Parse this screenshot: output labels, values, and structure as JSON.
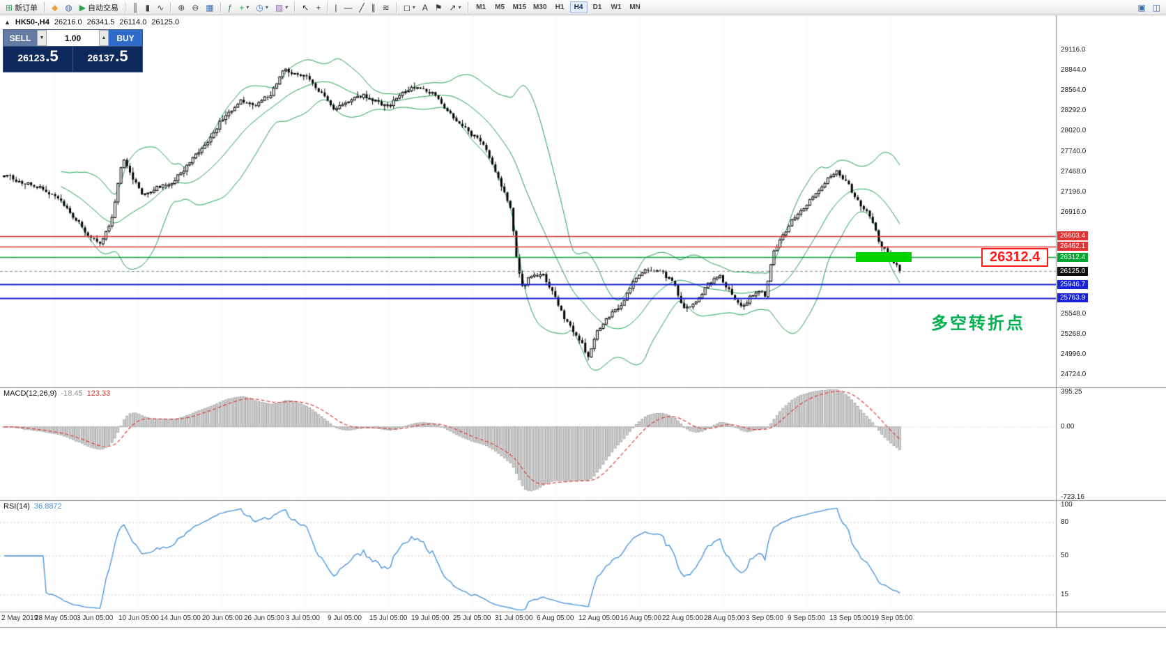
{
  "toolbar": {
    "caret_glyph": "▾",
    "groups": [
      {
        "items": [
          {
            "name": "new-order-button",
            "glyph": "⊞",
            "color": "#2e9e4f",
            "label": "新订单"
          }
        ]
      },
      {
        "items": [
          {
            "name": "metaeditor-button",
            "glyph": "◆",
            "color": "#e8a33d"
          },
          {
            "name": "market-watch-button",
            "glyph": "◍",
            "color": "#3b6fb5"
          },
          {
            "name": "autotrading-button",
            "glyph": "▶",
            "color": "#2e9e4f",
            "label": "自动交易"
          }
        ]
      },
      {
        "items": [
          {
            "name": "bar-chart-button",
            "glyph": "║",
            "color": "#444444"
          },
          {
            "name": "candlestick-chart-button",
            "glyph": "▮",
            "color": "#444444"
          },
          {
            "name": "line-chart-button",
            "glyph": "∿",
            "color": "#444444"
          }
        ]
      },
      {
        "items": [
          {
            "name": "zoom-in-button",
            "glyph": "⊕",
            "color": "#444444"
          },
          {
            "name": "zoom-out-button",
            "glyph": "⊖",
            "color": "#444444"
          },
          {
            "name": "grid-button",
            "glyph": "▦",
            "color": "#3b6fb5"
          }
        ]
      },
      {
        "items": [
          {
            "name": "indicators-button",
            "glyph": "ƒ",
            "color": "#2e8b57"
          },
          {
            "name": "add-indicator-button",
            "glyph": "+",
            "color": "#2e9e4f",
            "caret": true
          },
          {
            "name": "periods-button",
            "glyph": "◷",
            "color": "#3b6fb5",
            "caret": true
          },
          {
            "name": "templates-button",
            "glyph": "▨",
            "color": "#8a6fb5",
            "caret": true
          }
        ]
      },
      {
        "items": [
          {
            "name": "cursor-button",
            "glyph": "↖",
            "color": "#333333"
          },
          {
            "name": "crosshair-button",
            "glyph": "+",
            "color": "#333333"
          }
        ]
      },
      {
        "items": [
          {
            "name": "vertical-line-button",
            "glyph": "|",
            "color": "#333333"
          },
          {
            "name": "horizontal-line-button",
            "glyph": "—",
            "color": "#333333"
          },
          {
            "name": "trendline-button",
            "glyph": "╱",
            "color": "#333333"
          },
          {
            "name": "equidistant-channel-button",
            "glyph": "∥",
            "color": "#333333"
          },
          {
            "name": "fibonacci-button",
            "glyph": "≋",
            "color": "#333333"
          }
        ]
      },
      {
        "items": [
          {
            "name": "shapes-button",
            "glyph": "◻",
            "color": "#333333",
            "caret": true
          },
          {
            "name": "text-button",
            "glyph": "A",
            "color": "#333333"
          },
          {
            "name": "text-label-button",
            "glyph": "⚑",
            "color": "#333333"
          },
          {
            "name": "arrows-button",
            "glyph": "↗",
            "color": "#333333",
            "caret": true
          }
        ]
      }
    ],
    "right_items": [
      {
        "name": "new-chart-window-button",
        "glyph": "▣",
        "color": "#3b6fb5"
      },
      {
        "name": "window-layout-button",
        "glyph": "◫",
        "color": "#3b6fb5"
      }
    ]
  },
  "timeframes": {
    "items": [
      "M1",
      "M5",
      "M15",
      "M30",
      "H1",
      "H4",
      "D1",
      "W1",
      "MN"
    ],
    "active": "H4"
  },
  "chart_header": {
    "collapse_arrow": "▲",
    "symbol_period": "HK50-,H4",
    "open": "26216.0",
    "high": "26341.5",
    "low": "26114.0",
    "close": "26125.0"
  },
  "trade_panel": {
    "sell_label": "SELL",
    "buy_label": "BUY",
    "volume": "1.00",
    "volume_down_icon": "▼",
    "volume_up_icon": "▲",
    "sell_price_main": "26123",
    "sell_price_pips": ".5",
    "buy_price_main": "26137",
    "buy_price_pips": ".5"
  },
  "annotations": {
    "turning_point_text": "多空转折点",
    "turning_point_color": "#00b050",
    "price_label_text": "26312.4",
    "price_label_color": "#ff1a1a",
    "highlight_color": "#00d300"
  },
  "price_axis": {
    "labels": [
      {
        "text": "29116.0",
        "price": 29116.0
      },
      {
        "text": "28844.0",
        "price": 28844.0
      },
      {
        "text": "28564.0",
        "price": 28564.0
      },
      {
        "text": "28292.0",
        "price": 28292.0
      },
      {
        "text": "28020.0",
        "price": 28020.0
      },
      {
        "text": "27740.0",
        "price": 27740.0
      },
      {
        "text": "27468.0",
        "price": 27468.0
      },
      {
        "text": "27196.0",
        "price": 27196.0
      },
      {
        "text": "26916.0",
        "price": 26916.0
      },
      {
        "text": "25548.0",
        "price": 25548.0
      },
      {
        "text": "25268.0",
        "price": 25268.0
      },
      {
        "text": "24996.0",
        "price": 24996.0
      },
      {
        "text": "24724.0",
        "price": 24724.0
      }
    ]
  },
  "lines": [
    {
      "name": "resistance-line-1",
      "price": 26603.4,
      "tag": "26603.4",
      "color": "#e13333",
      "width": 1.5,
      "style": "solid",
      "tag_bg": "#e13333"
    },
    {
      "name": "resistance-line-2",
      "price": 26462.1,
      "tag": "26462.1",
      "color": "#e13333",
      "width": 1.5,
      "style": "solid",
      "tag_bg": "#e13333"
    },
    {
      "name": "pivot-line",
      "price": 26312.4,
      "tag": "26312.4",
      "color": "#00a532",
      "width": 1.5,
      "style": "solid",
      "tag_bg": "#00a532"
    },
    {
      "name": "bid-price-line",
      "price": 26125.0,
      "tag": "26125.0",
      "color": "#888888",
      "width": 1,
      "style": "dash",
      "tag_bg": "#111111"
    },
    {
      "name": "support-line-1",
      "price": 25946.7,
      "tag": "25946.7",
      "color": "#1722d8",
      "width": 2,
      "style": "solid",
      "tag_bg": "#1722d8"
    },
    {
      "name": "support-line-2",
      "price": 25763.9,
      "tag": "25763.9",
      "color": "#1722d8",
      "width": 2,
      "style": "solid",
      "tag_bg": "#1722d8"
    }
  ],
  "macd": {
    "label": "MACD(12,26,9)",
    "value_main": "-18.45",
    "value_signal": "123.33",
    "axis_labels": [
      {
        "text": "395.25",
        "value": 395.25
      },
      {
        "text": "0.00",
        "value": 0
      },
      {
        "text": "-723.16",
        "value": -723.16
      }
    ]
  },
  "rsi": {
    "label": "RSI(14)",
    "value": "36.8872",
    "axis_labels": [
      {
        "text": "100",
        "value": 100
      },
      {
        "text": "80",
        "value": 80
      },
      {
        "text": "50",
        "value": 50
      },
      {
        "text": "15",
        "value": 15
      }
    ],
    "levels": [
      80,
      50,
      15
    ]
  },
  "time_axis": {
    "labels": [
      "2 May 2019",
      "28 May 05:00",
      "3 Jun 05:00",
      "10 Jun 05:00",
      "14 Jun 05:00",
      "20 Jun 05:00",
      "26 Jun 05:00",
      "3 Jul 05:00",
      "9 Jul 05:00",
      "15 Jul 05:00",
      "19 Jul 05:00",
      "25 Jul 05:00",
      "31 Jul 05:00",
      "6 Aug 05:00",
      "12 Aug 05:00",
      "16 Aug 05:00",
      "22 Aug 05:00",
      "28 Aug 05:00",
      "3 Sep 05:00",
      "9 Sep 05:00",
      "13 Sep 05:00",
      "19 Sep 05:00"
    ]
  },
  "chart_data": {
    "type": "candlestick",
    "symbol": "HK50-",
    "timeframe": "H4",
    "last_ohlc": {
      "open": 26216.0,
      "high": 26341.5,
      "low": 26114.0,
      "close": 26125.0
    },
    "ylim": [
      24555,
      29585
    ],
    "candle_count": 300,
    "close_anchors": [
      [
        0,
        27430
      ],
      [
        0.02,
        27330
      ],
      [
        0.04,
        27260
      ],
      [
        0.06,
        27100
      ],
      [
        0.075,
        26900
      ],
      [
        0.095,
        26600
      ],
      [
        0.108,
        26480
      ],
      [
        0.122,
        26900
      ],
      [
        0.132,
        27660
      ],
      [
        0.142,
        27400
      ],
      [
        0.155,
        27150
      ],
      [
        0.17,
        27250
      ],
      [
        0.185,
        27300
      ],
      [
        0.205,
        27550
      ],
      [
        0.225,
        27850
      ],
      [
        0.245,
        28200
      ],
      [
        0.262,
        28420
      ],
      [
        0.28,
        28380
      ],
      [
        0.298,
        28520
      ],
      [
        0.312,
        28860
      ],
      [
        0.325,
        28800
      ],
      [
        0.34,
        28740
      ],
      [
        0.355,
        28520
      ],
      [
        0.368,
        28300
      ],
      [
        0.385,
        28420
      ],
      [
        0.4,
        28500
      ],
      [
        0.415,
        28420
      ],
      [
        0.43,
        28360
      ],
      [
        0.448,
        28560
      ],
      [
        0.462,
        28620
      ],
      [
        0.478,
        28540
      ],
      [
        0.492,
        28350
      ],
      [
        0.505,
        28150
      ],
      [
        0.52,
        28000
      ],
      [
        0.535,
        27850
      ],
      [
        0.548,
        27500
      ],
      [
        0.558,
        27200
      ],
      [
        0.566,
        26950
      ],
      [
        0.572,
        26300
      ],
      [
        0.578,
        25900
      ],
      [
        0.588,
        26050
      ],
      [
        0.6,
        26100
      ],
      [
        0.612,
        25850
      ],
      [
        0.625,
        25500
      ],
      [
        0.64,
        25250
      ],
      [
        0.652,
        24980
      ],
      [
        0.662,
        25300
      ],
      [
        0.675,
        25500
      ],
      [
        0.69,
        25700
      ],
      [
        0.705,
        26050
      ],
      [
        0.72,
        26150
      ],
      [
        0.735,
        26100
      ],
      [
        0.748,
        25950
      ],
      [
        0.758,
        25600
      ],
      [
        0.772,
        25700
      ],
      [
        0.785,
        25950
      ],
      [
        0.8,
        26050
      ],
      [
        0.812,
        25800
      ],
      [
        0.825,
        25650
      ],
      [
        0.838,
        25850
      ],
      [
        0.85,
        25800
      ],
      [
        0.858,
        26350
      ],
      [
        0.868,
        26600
      ],
      [
        0.88,
        26800
      ],
      [
        0.892,
        26950
      ],
      [
        0.905,
        27150
      ],
      [
        0.918,
        27350
      ],
      [
        0.93,
        27480
      ],
      [
        0.942,
        27300
      ],
      [
        0.955,
        27050
      ],
      [
        0.968,
        26850
      ],
      [
        0.978,
        26500
      ],
      [
        0.988,
        26350
      ],
      [
        1,
        26125
      ]
    ],
    "indicators": {
      "bollinger": {
        "period": 20,
        "deviation": 2,
        "color": "#1fa055"
      },
      "macd": {
        "fast": 12,
        "slow": 26,
        "signal": 9,
        "main_last": -18.45,
        "signal_last": 123.33,
        "hist_color": "#d0d0d0",
        "hist_border": "#909090",
        "signal_color": "#e03e3e",
        "ylim": [
          -750,
          404
        ]
      },
      "rsi": {
        "period": 14,
        "last": 36.8872,
        "color": "#3f8fdd",
        "ylim": [
          0,
          100
        ]
      }
    },
    "levels": {
      "resistance": [
        26603.4,
        26462.1
      ],
      "pivot": 26312.4,
      "bid": 26125.0,
      "support": [
        25946.7,
        25763.9
      ]
    }
  }
}
